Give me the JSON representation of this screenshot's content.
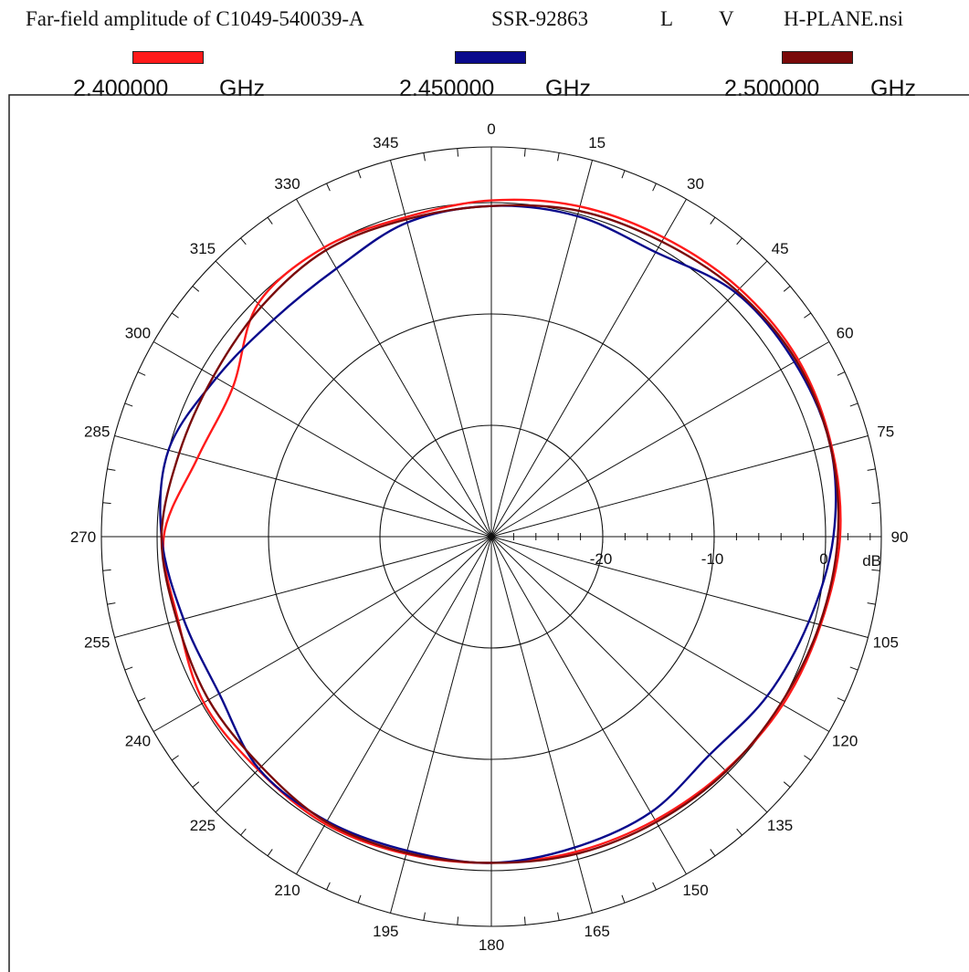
{
  "title": {
    "main": "Far-field amplitude of C1049-540039-A",
    "part": "SSR-92863",
    "flag1": "L",
    "flag2": "V",
    "file": "H-PLANE.nsi"
  },
  "legend": [
    {
      "value": "2.400000",
      "unit": "GHz",
      "color": "#ff1a1a"
    },
    {
      "value": "2.450000",
      "unit": "GHz",
      "color": "#0a0a8c"
    },
    {
      "value": "2.500000",
      "unit": "GHz",
      "color": "#7a0a0a"
    }
  ],
  "chart_data": {
    "type": "polar-line",
    "angle_unit": "deg",
    "angle_direction": "clockwise from top",
    "angle_ticks": [
      "0",
      "15",
      "30",
      "45",
      "60",
      "75",
      "90",
      "105",
      "120",
      "135",
      "150",
      "165",
      "180",
      "195",
      "210",
      "225",
      "240",
      "255",
      "270",
      "285",
      "300",
      "315",
      "330",
      "345"
    ],
    "radial_unit": "dB",
    "radial_range": [
      -30,
      5
    ],
    "radial_ticks": [
      -20,
      -10,
      0
    ],
    "radial_tick_labels": [
      "-20",
      "-10",
      "0"
    ],
    "radial_unit_label": "dB",
    "grid": true,
    "angles": [
      0,
      15,
      30,
      45,
      60,
      75,
      90,
      105,
      120,
      135,
      150,
      165,
      180,
      195,
      210,
      225,
      240,
      255,
      270,
      285,
      300,
      315,
      330,
      345
    ],
    "series": [
      {
        "name": "2.400000 GHz",
        "color": "#ff1a1a",
        "values": [
          0.2,
          0.7,
          1.0,
          1.5,
          1.8,
          1.6,
          1.3,
          0.6,
          0.2,
          -0.3,
          -0.6,
          -0.7,
          -0.7,
          -0.5,
          -0.2,
          -0.4,
          -0.2,
          -0.9,
          -0.6,
          -2.7,
          -3.2,
          -0.4,
          0.0,
          -0.3
        ]
      },
      {
        "name": "2.450000 GHz",
        "color": "#0a0a8c",
        "values": [
          -0.3,
          -0.2,
          -0.5,
          1.0,
          1.4,
          1.5,
          0.7,
          -0.5,
          -1.4,
          -2.3,
          -1.4,
          -1.1,
          -0.7,
          -0.8,
          -0.5,
          -0.5,
          -1.8,
          -1.4,
          -0.4,
          0.0,
          -1.5,
          -2.4,
          -2.2,
          -0.8
        ]
      },
      {
        "name": "2.500000 GHz",
        "color": "#7a0a0a",
        "values": [
          -0.3,
          0.3,
          0.6,
          1.2,
          1.6,
          1.5,
          1.1,
          0.5,
          0.0,
          -0.2,
          -0.4,
          -0.5,
          -0.7,
          -0.6,
          -0.4,
          -0.8,
          -0.7,
          -0.8,
          -0.4,
          -1.0,
          -1.2,
          -0.8,
          -0.3,
          -0.5
        ]
      }
    ]
  }
}
